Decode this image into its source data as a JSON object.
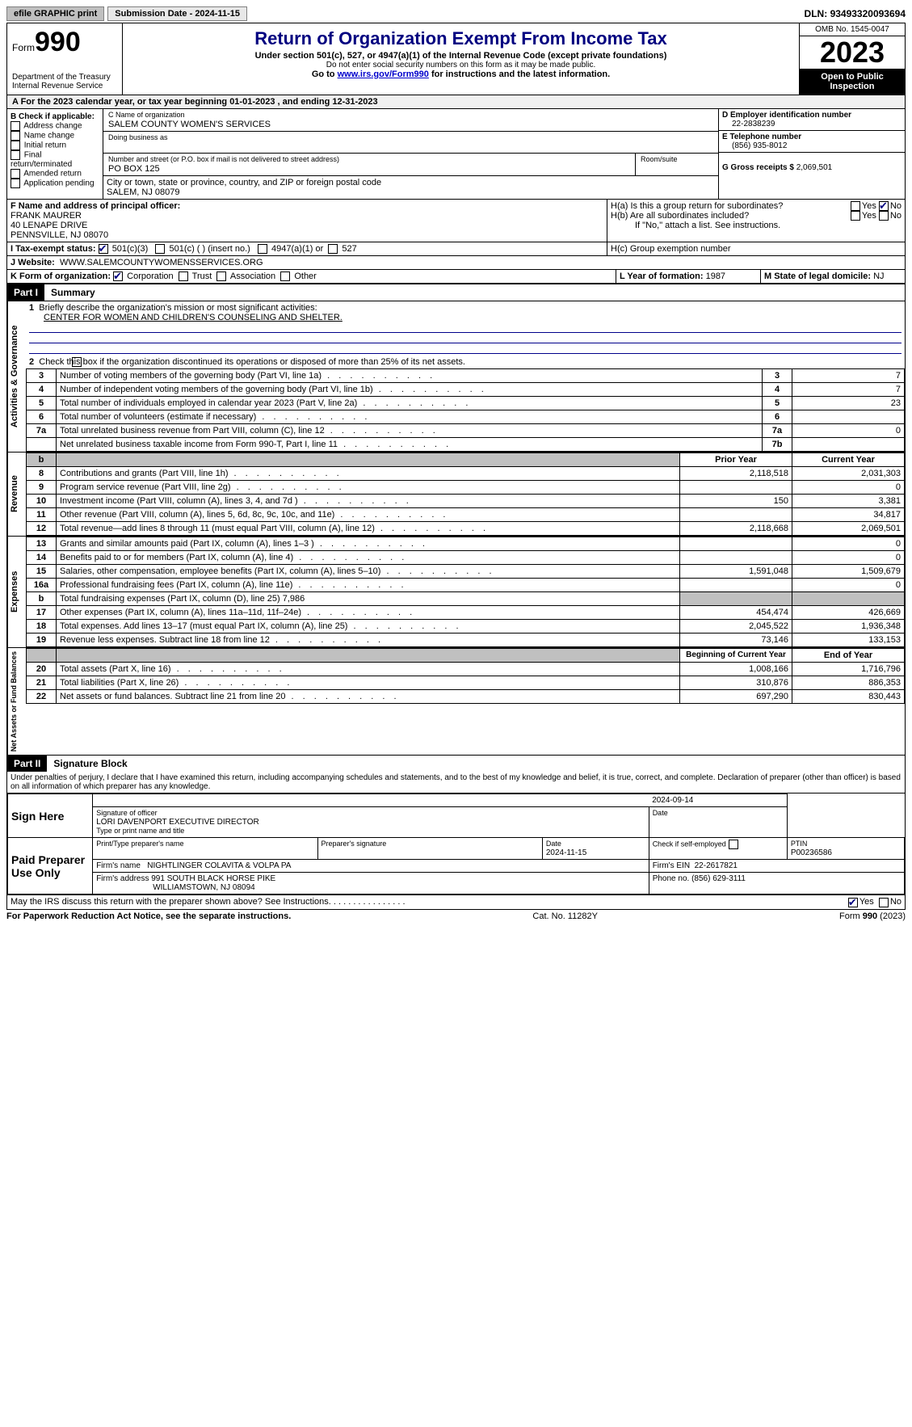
{
  "topbar": {
    "efile": "efile GRAPHIC print",
    "submission": "Submission Date - 2024-11-15",
    "dln_label": "DLN:",
    "dln": "93493320093694"
  },
  "header": {
    "form_prefix": "Form",
    "form_number": "990",
    "dept": "Department of the Treasury",
    "irs": "Internal Revenue Service",
    "title": "Return of Organization Exempt From Income Tax",
    "subtitle": "Under section 501(c), 527, or 4947(a)(1) of the Internal Revenue Code (except private foundations)",
    "ssn_warn": "Do not enter social security numbers on this form as it may be made public.",
    "goto": "Go to ",
    "goto_link": "www.irs.gov/Form990",
    "goto_tail": " for instructions and the latest information.",
    "omb": "OMB No. 1545-0047",
    "year": "2023",
    "open": "Open to Public Inspection"
  },
  "sectionA": {
    "text": "A For the 2023 calendar year, or tax year beginning 01-01-2023    , and ending 12-31-2023"
  },
  "boxB": {
    "label": "B Check if applicable:",
    "items": [
      "Address change",
      "Name change",
      "Initial return",
      "Final return/terminated",
      "Amended return",
      "Application pending"
    ]
  },
  "boxC": {
    "name_label": "C Name of organization",
    "name": "SALEM COUNTY WOMEN'S SERVICES",
    "dba_label": "Doing business as",
    "addr_label": "Number and street (or P.O. box if mail is not delivered to street address)",
    "addr": "PO BOX 125",
    "room_label": "Room/suite",
    "city_label": "City or town, state or province, country, and ZIP or foreign postal code",
    "city": "SALEM, NJ  08079"
  },
  "boxD": {
    "label": "D Employer identification number",
    "value": "22-2838239"
  },
  "boxE": {
    "label": "E Telephone number",
    "value": "(856) 935-8012"
  },
  "boxG": {
    "label": "G Gross receipts $",
    "value": "2,069,501"
  },
  "boxF": {
    "label": "F  Name and address of principal officer:",
    "name": "FRANK MAURER",
    "addr1": "40 LENAPE DRIVE",
    "addr2": "PENNSVILLE, NJ  08070"
  },
  "boxH": {
    "ha": "H(a)  Is this a group return for subordinates?",
    "hb": "H(b)  Are all subordinates included?",
    "hb_note": "If \"No,\" attach a list. See instructions.",
    "hc": "H(c)  Group exemption number",
    "yes": "Yes",
    "no": "No"
  },
  "boxI": {
    "label": "I   Tax-exempt status:",
    "opt1": "501(c)(3)",
    "opt2": "501(c) (   ) (insert no.)",
    "opt3": "4947(a)(1) or",
    "opt4": "527"
  },
  "boxJ": {
    "label": "J   Website:",
    "value": "WWW.SALEMCOUNTYWOMENSSERVICES.ORG"
  },
  "boxK": {
    "label": "K Form of organization:",
    "opts": [
      "Corporation",
      "Trust",
      "Association",
      "Other"
    ]
  },
  "boxL": {
    "label": "L Year of formation:",
    "value": "1987"
  },
  "boxM": {
    "label": "M State of legal domicile:",
    "value": "NJ"
  },
  "part1": {
    "header": "Part I",
    "title": "Summary",
    "line1": "Briefly describe the organization's mission or most significant activities:",
    "line1v": "CENTER FOR WOMEN AND CHILDREN'S COUNSELING AND SHELTER.",
    "line2": "Check this box           if the organization discontinued its operations or disposed of more than 25% of its net assets.",
    "rows_gov": [
      {
        "n": "3",
        "t": "Number of voting members of the governing body (Part VI, line 1a)",
        "l": "3",
        "v": "7"
      },
      {
        "n": "4",
        "t": "Number of independent voting members of the governing body (Part VI, line 1b)",
        "l": "4",
        "v": "7"
      },
      {
        "n": "5",
        "t": "Total number of individuals employed in calendar year 2023 (Part V, line 2a)",
        "l": "5",
        "v": "23"
      },
      {
        "n": "6",
        "t": "Total number of volunteers (estimate if necessary)",
        "l": "6",
        "v": ""
      },
      {
        "n": "7a",
        "t": "Total unrelated business revenue from Part VIII, column (C), line 12",
        "l": "7a",
        "v": "0"
      },
      {
        "n": "",
        "t": "Net unrelated business taxable income from Form 990-T, Part I, line 11",
        "l": "7b",
        "v": ""
      }
    ],
    "col_prior": "Prior Year",
    "col_current": "Current Year",
    "rows_rev": [
      {
        "n": "8",
        "t": "Contributions and grants (Part VIII, line 1h)",
        "p": "2,118,518",
        "c": "2,031,303"
      },
      {
        "n": "9",
        "t": "Program service revenue (Part VIII, line 2g)",
        "p": "",
        "c": "0"
      },
      {
        "n": "10",
        "t": "Investment income (Part VIII, column (A), lines 3, 4, and 7d )",
        "p": "150",
        "c": "3,381"
      },
      {
        "n": "11",
        "t": "Other revenue (Part VIII, column (A), lines 5, 6d, 8c, 9c, 10c, and 11e)",
        "p": "",
        "c": "34,817"
      },
      {
        "n": "12",
        "t": "Total revenue—add lines 8 through 11 (must equal Part VIII, column (A), line 12)",
        "p": "2,118,668",
        "c": "2,069,501"
      }
    ],
    "rows_exp": [
      {
        "n": "13",
        "t": "Grants and similar amounts paid (Part IX, column (A), lines 1–3 )",
        "p": "",
        "c": "0"
      },
      {
        "n": "14",
        "t": "Benefits paid to or for members (Part IX, column (A), line 4)",
        "p": "",
        "c": "0"
      },
      {
        "n": "15",
        "t": "Salaries, other compensation, employee benefits (Part IX, column (A), lines 5–10)",
        "p": "1,591,048",
        "c": "1,509,679"
      },
      {
        "n": "16a",
        "t": "Professional fundraising fees (Part IX, column (A), line 11e)",
        "p": "",
        "c": "0"
      },
      {
        "n": "b",
        "t": "Total fundraising expenses (Part IX, column (D), line 25) 7,986",
        "p": "GRAY",
        "c": "GRAY"
      },
      {
        "n": "17",
        "t": "Other expenses (Part IX, column (A), lines 11a–11d, 11f–24e)",
        "p": "454,474",
        "c": "426,669"
      },
      {
        "n": "18",
        "t": "Total expenses. Add lines 13–17 (must equal Part IX, column (A), line 25)",
        "p": "2,045,522",
        "c": "1,936,348"
      },
      {
        "n": "19",
        "t": "Revenue less expenses. Subtract line 18 from line 12",
        "p": "73,146",
        "c": "133,153"
      }
    ],
    "col_begin": "Beginning of Current Year",
    "col_end": "End of Year",
    "rows_net": [
      {
        "n": "20",
        "t": "Total assets (Part X, line 16)",
        "p": "1,008,166",
        "c": "1,716,796"
      },
      {
        "n": "21",
        "t": "Total liabilities (Part X, line 26)",
        "p": "310,876",
        "c": "886,353"
      },
      {
        "n": "22",
        "t": "Net assets or fund balances. Subtract line 21 from line 20",
        "p": "697,290",
        "c": "830,443"
      }
    ],
    "labels": {
      "gov": "Activities & Governance",
      "rev": "Revenue",
      "exp": "Expenses",
      "net": "Net Assets or Fund Balances"
    }
  },
  "part2": {
    "header": "Part II",
    "title": "Signature Block",
    "perjury": "Under penalties of perjury, I declare that I have examined this return, including accompanying schedules and statements, and to the best of my knowledge and belief, it is true, correct, and complete. Declaration of preparer (other than officer) is based on all information of which preparer has any knowledge.",
    "sign_here": "Sign Here",
    "sig_date": "2024-09-14",
    "sig_officer_label": "Signature of officer",
    "sig_officer": "LORI DAVENPORT  EXECUTIVE DIRECTOR",
    "sig_type_label": "Type or print name and title",
    "date_label": "Date",
    "paid": "Paid Preparer Use Only",
    "prep_name_label": "Print/Type preparer's name",
    "prep_sig_label": "Preparer's signature",
    "prep_date": "2024-11-15",
    "self_emp": "Check         if self-employed",
    "ptin_label": "PTIN",
    "ptin": "P00236586",
    "firm_name_label": "Firm's name",
    "firm_name": "NIGHTLINGER COLAVITA & VOLPA PA",
    "firm_ein_label": "Firm's EIN",
    "firm_ein": "22-2617821",
    "firm_addr_label": "Firm's address",
    "firm_addr1": "991 SOUTH BLACK HORSE PIKE",
    "firm_addr2": "WILLIAMSTOWN, NJ  08094",
    "phone_label": "Phone no.",
    "phone": "(856) 629-3111",
    "discuss": "May the IRS discuss this return with the preparer shown above? See Instructions.",
    "yes": "Yes",
    "no": "No"
  },
  "footer": {
    "paperwork": "For Paperwork Reduction Act Notice, see the separate instructions.",
    "cat": "Cat. No. 11282Y",
    "form": "Form 990 (2023)"
  }
}
